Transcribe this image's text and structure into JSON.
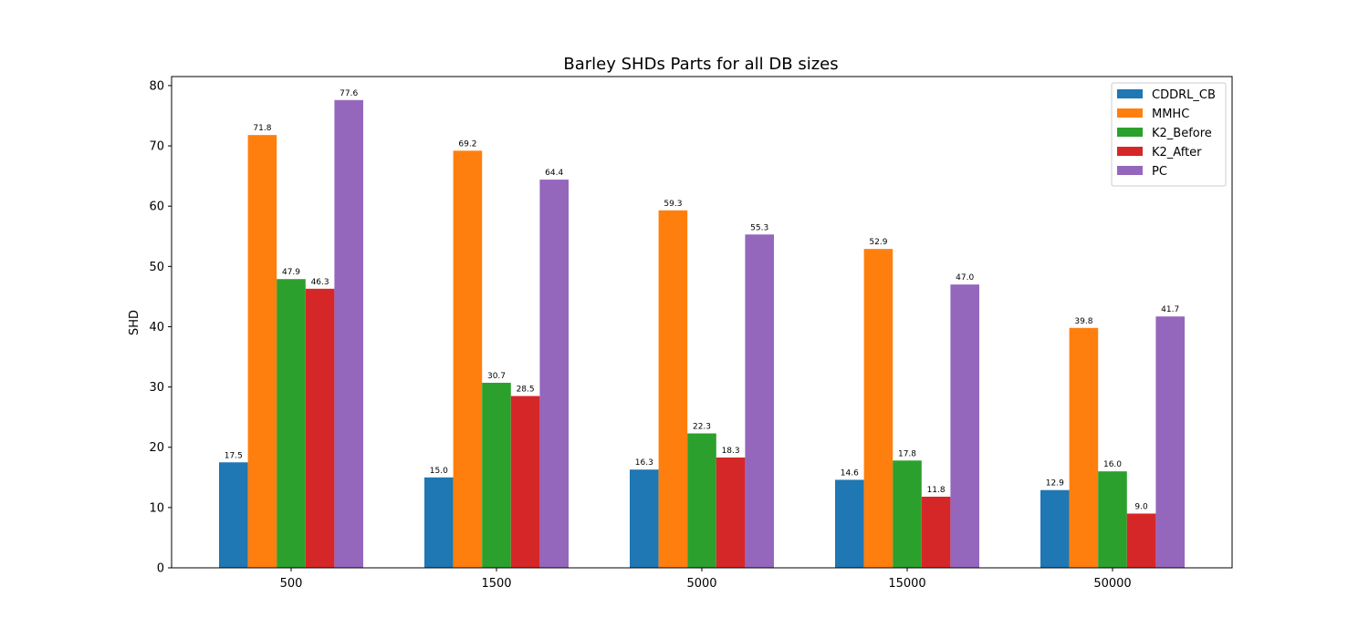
{
  "chart_data": {
    "type": "bar",
    "title": "Barley SHDs Parts for all DB sizes",
    "xlabel": "",
    "ylabel": "SHD",
    "ylim": [
      0,
      81.5
    ],
    "yticks": [
      0,
      10,
      20,
      30,
      40,
      50,
      60,
      70,
      80
    ],
    "categories": [
      "500",
      "1500",
      "5000",
      "15000",
      "50000"
    ],
    "legend_position": "top-right",
    "grid": false,
    "series": [
      {
        "name": "CDDRL_CB",
        "color": "#1f77b4",
        "values": [
          17.5,
          15.0,
          16.3,
          14.6,
          12.9
        ]
      },
      {
        "name": "MMHC",
        "color": "#ff7f0e",
        "values": [
          71.8,
          69.2,
          59.3,
          52.9,
          39.8
        ]
      },
      {
        "name": "K2_Before",
        "color": "#2ca02c",
        "values": [
          47.9,
          30.7,
          22.3,
          17.8,
          16.0
        ]
      },
      {
        "name": "K2_After",
        "color": "#d62728",
        "values": [
          46.3,
          28.5,
          18.3,
          11.8,
          9.0
        ]
      },
      {
        "name": "PC",
        "color": "#9467bd",
        "values": [
          77.6,
          64.4,
          55.3,
          47.0,
          41.7
        ]
      }
    ]
  }
}
